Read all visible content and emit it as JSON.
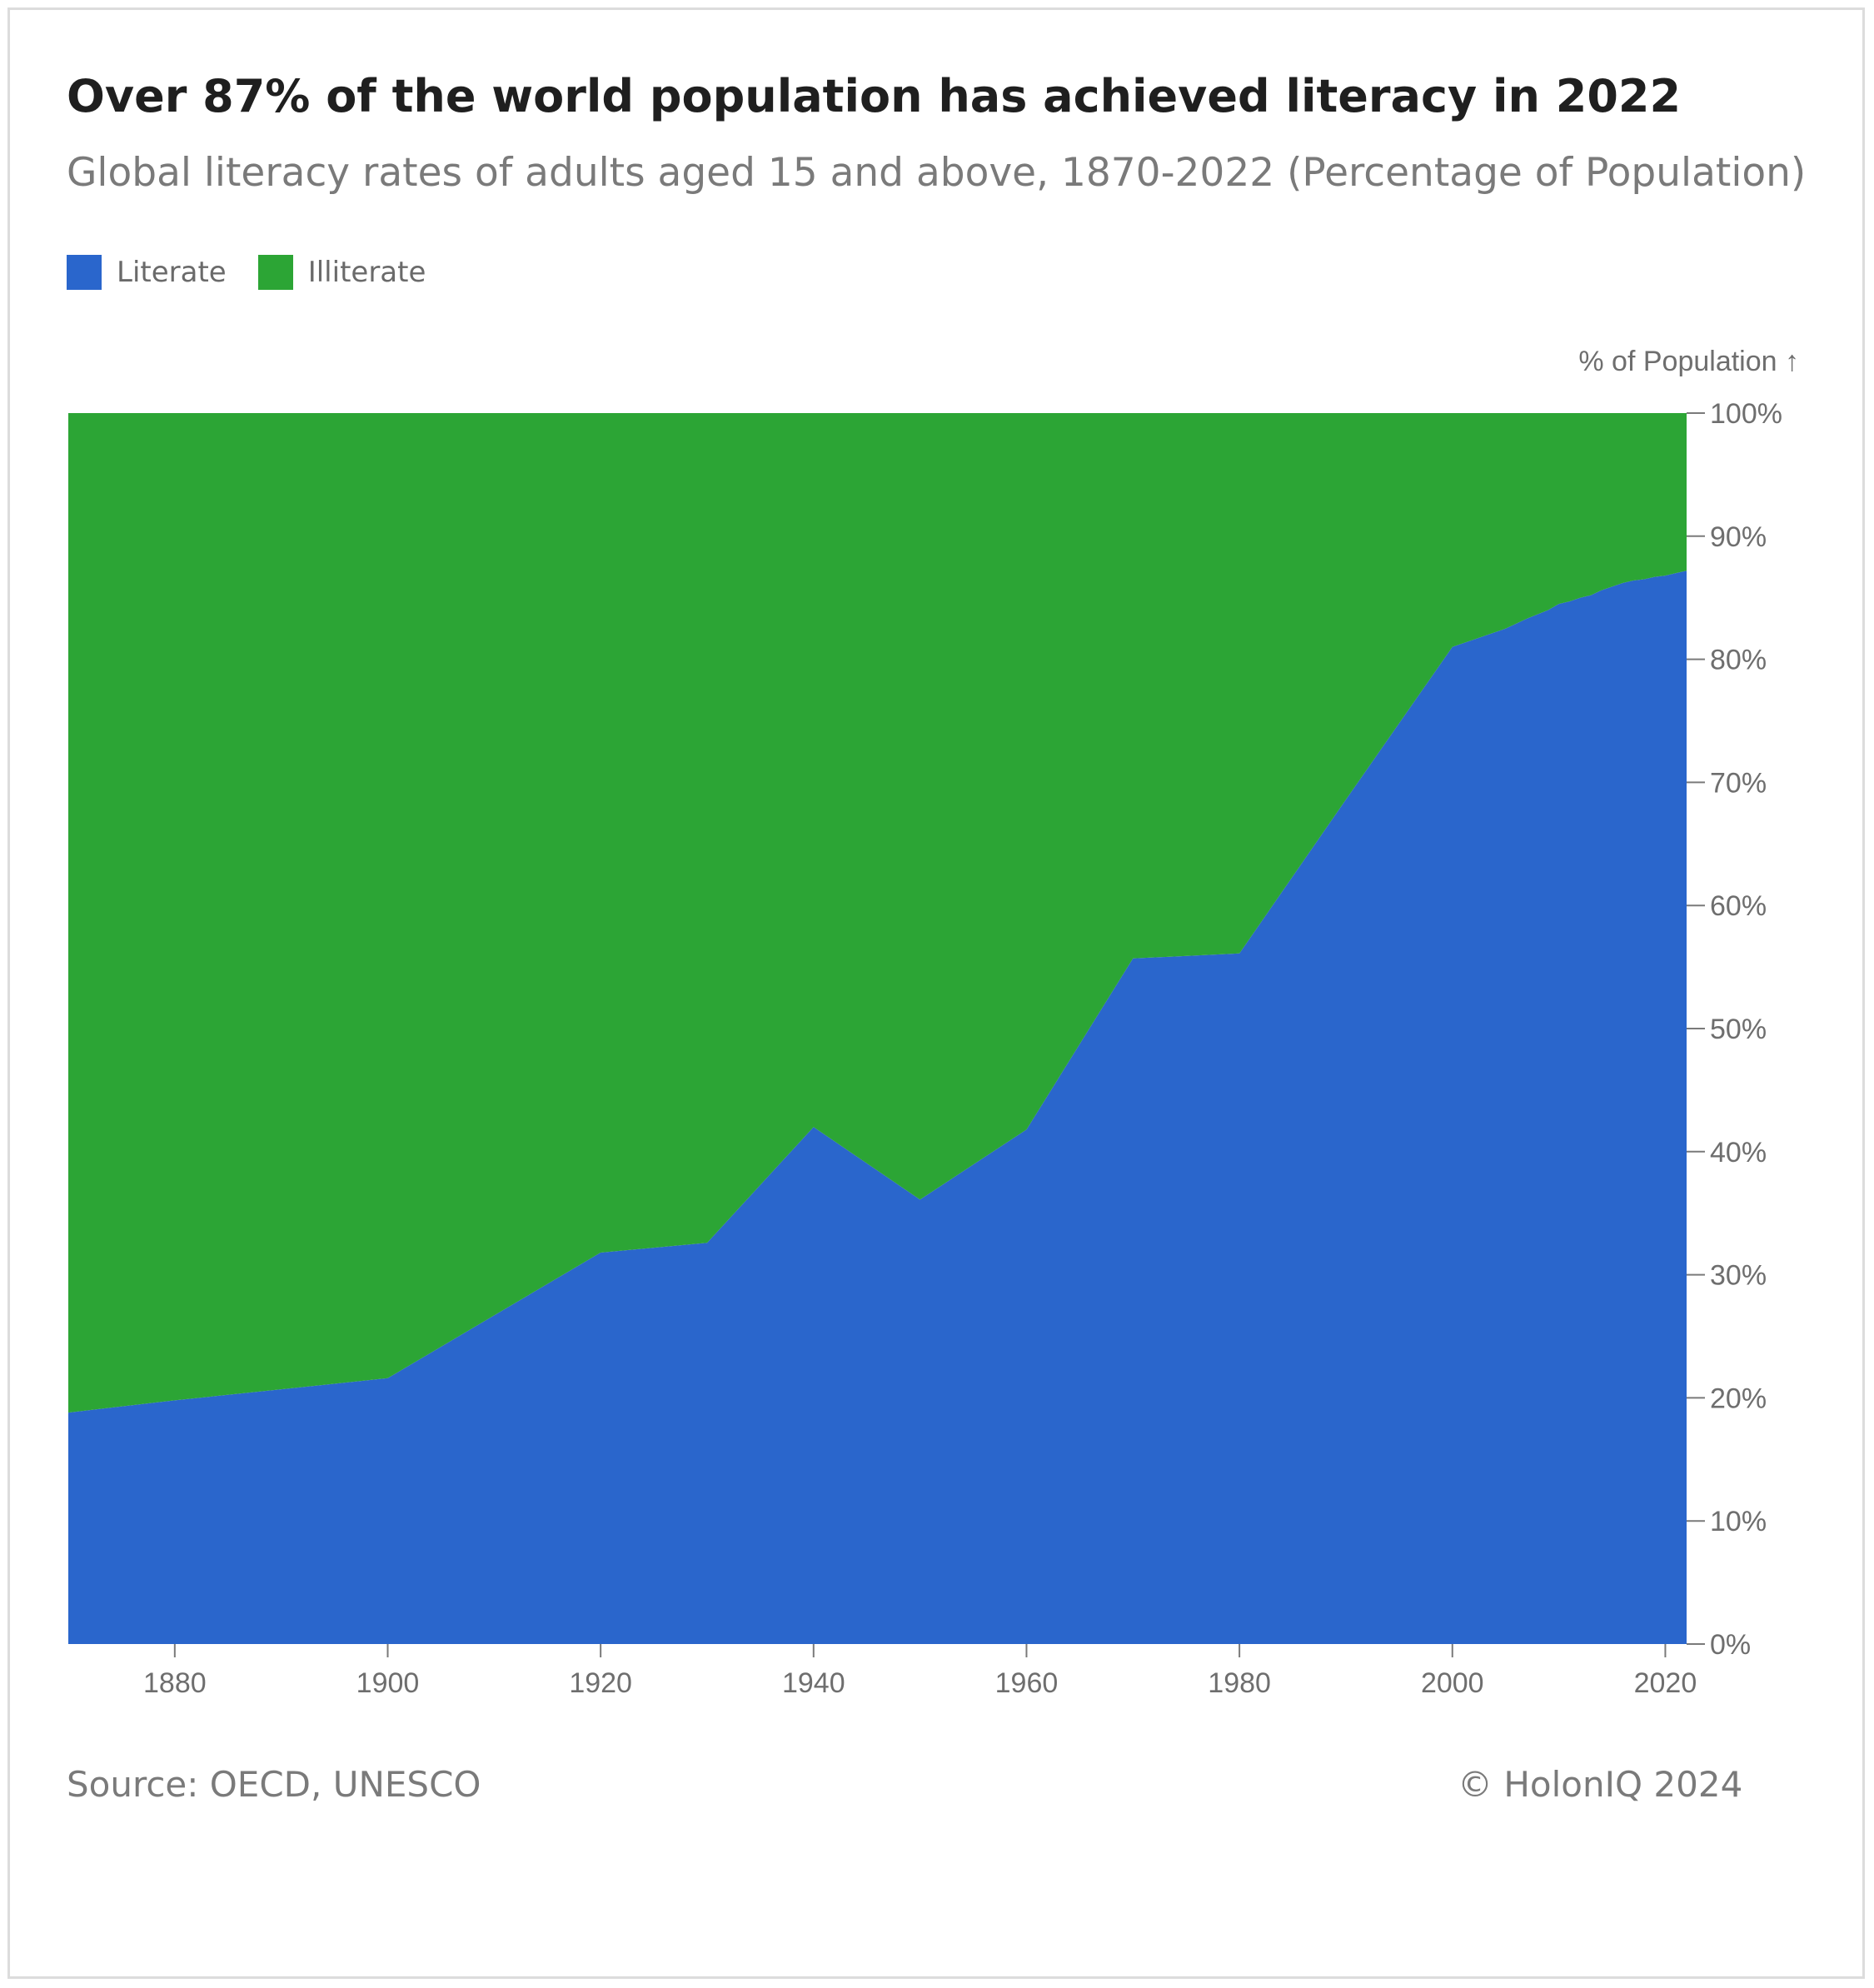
{
  "title": "Over 87% of the world population has achieved literacy in 2022",
  "subtitle": "Global literacy rates of adults aged 15 and above, 1870-2022 (Percentage of Population)",
  "legend": [
    {
      "label": "Literate",
      "color": "#2a66cc"
    },
    {
      "label": "Illiterate",
      "color": "#2ca535"
    }
  ],
  "footer": {
    "source": "Source: OECD, UNESCO",
    "credit": "© HolonIQ 2024"
  },
  "chart_data": {
    "type": "area",
    "stacked": true,
    "title": "Over 87% of the world population has achieved literacy in 2022",
    "ylabel": "% of Population ↑",
    "xlabel": "",
    "xlim": [
      1870,
      2022
    ],
    "ylim": [
      0,
      100
    ],
    "x_ticks": [
      1880,
      1900,
      1920,
      1940,
      1960,
      1980,
      2000,
      2020
    ],
    "y_ticks": [
      0,
      10,
      20,
      30,
      40,
      50,
      60,
      70,
      80,
      90,
      100
    ],
    "y_tick_labels": [
      "0%",
      "10%",
      "20%",
      "30%",
      "40%",
      "50%",
      "60%",
      "70%",
      "80%",
      "90%",
      "100%"
    ],
    "y_axis_position": "right",
    "grid": false,
    "legend_position": "top-left",
    "x": [
      1870,
      1880,
      1890,
      1900,
      1910,
      1920,
      1930,
      1940,
      1950,
      1960,
      1970,
      1980,
      1990,
      2000,
      2005,
      2007,
      2009,
      2010,
      2011,
      2012,
      2013,
      2014,
      2015,
      2016,
      2017,
      2018,
      2019,
      2020,
      2021,
      2022
    ],
    "series": [
      {
        "name": "Literate",
        "color": "#2a66cc",
        "values": [
          18.8,
          19.8,
          20.7,
          21.6,
          26.7,
          31.8,
          32.6,
          42.0,
          36.1,
          41.8,
          55.7,
          56.1,
          68.6,
          81.0,
          82.5,
          83.3,
          84.0,
          84.5,
          84.7,
          85.0,
          85.2,
          85.6,
          85.9,
          86.2,
          86.4,
          86.5,
          86.7,
          86.8,
          87.0,
          87.2
        ]
      },
      {
        "name": "Illiterate",
        "color": "#2ca535",
        "values": [
          81.2,
          80.2,
          79.3,
          78.4,
          73.3,
          68.2,
          67.4,
          58.0,
          63.9,
          58.2,
          44.3,
          43.9,
          31.4,
          19.0,
          17.5,
          16.7,
          16.0,
          15.5,
          15.3,
          15.0,
          14.8,
          14.4,
          14.1,
          13.8,
          13.6,
          13.5,
          13.3,
          13.2,
          13.0,
          12.8
        ]
      }
    ]
  }
}
